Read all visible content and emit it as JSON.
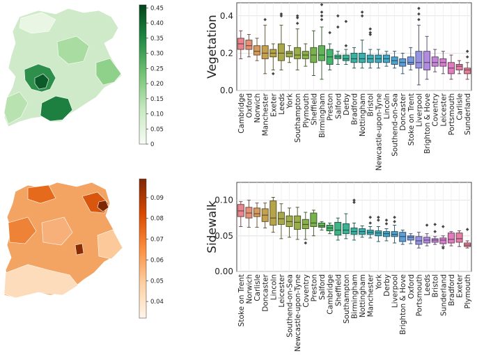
{
  "colorbars": [
    {
      "name": "vegetation-colorbar",
      "ticks": [
        "0",
        "0.05",
        "0.10",
        "0.15",
        "0.20",
        "0.25",
        "0.30",
        "0.35",
        "0.40",
        "0.45"
      ],
      "range": [
        0,
        0.46
      ],
      "color_low": "#f7fcf5",
      "color_high": "#00441b"
    },
    {
      "name": "sidewalk-colorbar",
      "ticks": [
        "0.04",
        "0.05",
        "0.06",
        "0.07",
        "0.08",
        "0.09"
      ],
      "range": [
        0.032,
        0.099
      ],
      "color_low": "#fff5eb",
      "color_high": "#7f2704"
    }
  ],
  "chart_data": [
    {
      "type": "boxplot",
      "title": "",
      "ylabel": "Vegetation",
      "ylim": [
        0,
        0.47
      ],
      "yticks": [
        "0.0",
        "0.2",
        "0.4"
      ],
      "yticks_values": [
        0.0,
        0.2,
        0.4
      ],
      "grid": true,
      "categories": [
        "Cambridge",
        "Oxford",
        "Norwich",
        "Manchester",
        "Exeter",
        "Leeds",
        "York",
        "Southampton",
        "Plymouth",
        "Sheffield",
        "Birmingham",
        "Preston",
        "Salford",
        "Derby",
        "Bradford",
        "Nottingham",
        "Bristol",
        "Newcastle-upon-Tyne",
        "Lincoln",
        "Southend-on-Sea",
        "Doncaster",
        "Stoke on Trent",
        "Liverpool",
        "Brighton & Hove",
        "Coventry",
        "Leicester",
        "Portsmouth",
        "Carlisle",
        "Sunderland"
      ],
      "colors": [
        "#e8858d",
        "#e39077",
        "#d49a5e",
        "#c4a04f",
        "#b5a44a",
        "#a8a84a",
        "#a0ac4a",
        "#99ad4a",
        "#8aaf4a",
        "#78b14e",
        "#62b45a",
        "#45b56e",
        "#3eb586",
        "#3ab394",
        "#3ab1a0",
        "#3aafab",
        "#3cadb5",
        "#40aabd",
        "#45a7c5",
        "#4ea3cf",
        "#5e9ed7",
        "#7899e0",
        "#9693e3",
        "#b08be0",
        "#c584d9",
        "#d57ecf",
        "#e07cbd",
        "#e47ea9",
        "#e68097"
      ],
      "boxes": [
        {
          "min": 0.17,
          "q1": 0.22,
          "median": 0.25,
          "q3": 0.28,
          "max": 0.32,
          "outliers": []
        },
        {
          "min": 0.18,
          "q1": 0.22,
          "median": 0.24,
          "q3": 0.27,
          "max": 0.3,
          "outliers": []
        },
        {
          "min": 0.16,
          "q1": 0.19,
          "median": 0.21,
          "q3": 0.24,
          "max": 0.28,
          "outliers": []
        },
        {
          "min": 0.09,
          "q1": 0.17,
          "median": 0.2,
          "q3": 0.24,
          "max": 0.35,
          "outliers": [
            0.38
          ]
        },
        {
          "min": 0.11,
          "q1": 0.18,
          "median": 0.2,
          "q3": 0.22,
          "max": 0.25,
          "outliers": [
            0.09
          ]
        },
        {
          "min": 0.11,
          "q1": 0.16,
          "median": 0.2,
          "q3": 0.25,
          "max": 0.35,
          "outliers": [
            0.4,
            0.41
          ]
        },
        {
          "min": 0.15,
          "q1": 0.18,
          "median": 0.2,
          "q3": 0.21,
          "max": 0.24,
          "outliers": []
        },
        {
          "min": 0.11,
          "q1": 0.17,
          "median": 0.19,
          "q3": 0.23,
          "max": 0.33,
          "outliers": [
            0.36,
            0.39,
            0.4
          ]
        },
        {
          "min": 0.13,
          "q1": 0.17,
          "median": 0.19,
          "q3": 0.21,
          "max": 0.25,
          "outliers": []
        },
        {
          "min": 0.08,
          "q1": 0.15,
          "median": 0.19,
          "q3": 0.23,
          "max": 0.32,
          "outliers": []
        },
        {
          "min": 0.06,
          "q1": 0.16,
          "median": 0.19,
          "q3": 0.24,
          "max": 0.34,
          "outliers": [
            0.38,
            0.4,
            0.42,
            0.46
          ]
        },
        {
          "min": 0.11,
          "q1": 0.14,
          "median": 0.18,
          "q3": 0.22,
          "max": 0.25,
          "outliers": [
            0.31
          ]
        },
        {
          "min": 0.14,
          "q1": 0.17,
          "median": 0.18,
          "q3": 0.19,
          "max": 0.21,
          "outliers": [
            0.34,
            0.4
          ]
        },
        {
          "min": 0.14,
          "q1": 0.16,
          "median": 0.17,
          "q3": 0.19,
          "max": 0.22,
          "outliers": [
            0.24,
            0.37
          ]
        },
        {
          "min": 0.12,
          "q1": 0.15,
          "median": 0.17,
          "q3": 0.2,
          "max": 0.23,
          "outliers": []
        },
        {
          "min": 0.12,
          "q1": 0.15,
          "median": 0.17,
          "q3": 0.2,
          "max": 0.27,
          "outliers": [
            0.4,
            0.42
          ]
        },
        {
          "min": 0.12,
          "q1": 0.15,
          "median": 0.17,
          "q3": 0.19,
          "max": 0.22,
          "outliers": [
            0.3,
            0.31,
            0.33
          ]
        },
        {
          "min": 0.12,
          "q1": 0.15,
          "median": 0.17,
          "q3": 0.19,
          "max": 0.22,
          "outliers": []
        },
        {
          "min": 0.13,
          "q1": 0.15,
          "median": 0.17,
          "q3": 0.19,
          "max": 0.21,
          "outliers": []
        },
        {
          "min": 0.12,
          "q1": 0.14,
          "median": 0.16,
          "q3": 0.18,
          "max": 0.21,
          "outliers": []
        },
        {
          "min": 0.09,
          "q1": 0.13,
          "median": 0.15,
          "q3": 0.17,
          "max": 0.2,
          "outliers": []
        },
        {
          "min": 0.11,
          "q1": 0.14,
          "median": 0.15,
          "q3": 0.18,
          "max": 0.23,
          "outliers": []
        },
        {
          "min": 0.03,
          "q1": 0.12,
          "median": 0.15,
          "q3": 0.21,
          "max": 0.35,
          "outliers": [
            0.38,
            0.41,
            0.44
          ]
        },
        {
          "min": 0.06,
          "q1": 0.11,
          "median": 0.15,
          "q3": 0.21,
          "max": 0.29,
          "outliers": []
        },
        {
          "min": 0.1,
          "q1": 0.13,
          "median": 0.15,
          "q3": 0.18,
          "max": 0.22,
          "outliers": []
        },
        {
          "min": 0.09,
          "q1": 0.13,
          "median": 0.15,
          "q3": 0.17,
          "max": 0.21,
          "outliers": []
        },
        {
          "min": 0.06,
          "q1": 0.09,
          "median": 0.12,
          "q3": 0.15,
          "max": 0.19,
          "outliers": []
        },
        {
          "min": 0.09,
          "q1": 0.11,
          "median": 0.13,
          "q3": 0.14,
          "max": 0.16,
          "outliers": []
        },
        {
          "min": 0.06,
          "q1": 0.09,
          "median": 0.11,
          "q3": 0.12,
          "max": 0.15,
          "outliers": [
            0.18,
            0.21
          ]
        }
      ]
    },
    {
      "type": "boxplot",
      "title": "",
      "ylabel": "Sidewalk",
      "ylim": [
        0,
        0.125
      ],
      "yticks": [
        "0.00",
        "0.05",
        "0.10"
      ],
      "yticks_values": [
        0.0,
        0.05,
        0.1
      ],
      "grid": true,
      "categories": [
        "Stoke on Trent",
        "Norwich",
        "Carlisle",
        "Doncaster",
        "Lincoln",
        "Leicester",
        "Southend-on-Sea",
        "Newcastle-upon-Tyne",
        "Coventry",
        "Preston",
        "Salford",
        "Cambridge",
        "Sheffield",
        "Southampton",
        "Birmingham",
        "Nottingham",
        "Manchester",
        "York",
        "Derby",
        "Liverpool",
        "Brighton & Hove",
        "Oxford",
        "Portsmouth",
        "Leeds",
        "Bristol",
        "Sunderland",
        "Bradford",
        "Exeter",
        "Plymouth"
      ],
      "colors": [
        "#e8858d",
        "#e39077",
        "#d49a5e",
        "#c4a04f",
        "#b5a44a",
        "#a8a84a",
        "#a0ac4a",
        "#99ad4a",
        "#8aaf4a",
        "#78b14e",
        "#62b45a",
        "#45b56e",
        "#3eb586",
        "#3ab394",
        "#3ab1a0",
        "#3aafab",
        "#3cadb5",
        "#40aabd",
        "#45a7c5",
        "#4ea3cf",
        "#5e9ed7",
        "#7899e0",
        "#9693e3",
        "#b08be0",
        "#c584d9",
        "#d57ecf",
        "#e07cbd",
        "#e47ea9",
        "#e68097"
      ],
      "boxes": [
        {
          "min": 0.063,
          "q1": 0.077,
          "median": 0.085,
          "q3": 0.094,
          "max": 0.098,
          "outliers": []
        },
        {
          "min": 0.062,
          "q1": 0.075,
          "median": 0.082,
          "q3": 0.09,
          "max": 0.1,
          "outliers": []
        },
        {
          "min": 0.062,
          "q1": 0.077,
          "median": 0.081,
          "q3": 0.089,
          "max": 0.096,
          "outliers": []
        },
        {
          "min": 0.061,
          "q1": 0.07,
          "median": 0.079,
          "q3": 0.088,
          "max": 0.096,
          "outliers": []
        },
        {
          "min": 0.055,
          "q1": 0.065,
          "median": 0.075,
          "q3": 0.099,
          "max": 0.104,
          "outliers": []
        },
        {
          "min": 0.046,
          "q1": 0.066,
          "median": 0.074,
          "q3": 0.083,
          "max": 0.095,
          "outliers": []
        },
        {
          "min": 0.048,
          "q1": 0.063,
          "median": 0.07,
          "q3": 0.078,
          "max": 0.089,
          "outliers": []
        },
        {
          "min": 0.045,
          "q1": 0.059,
          "median": 0.069,
          "q3": 0.078,
          "max": 0.09,
          "outliers": []
        },
        {
          "min": 0.045,
          "q1": 0.06,
          "median": 0.066,
          "q3": 0.073,
          "max": 0.083,
          "outliers": [
            0.04
          ]
        },
        {
          "min": 0.05,
          "q1": 0.063,
          "median": 0.068,
          "q3": 0.082,
          "max": 0.086,
          "outliers": []
        },
        {
          "min": 0.058,
          "q1": 0.062,
          "median": 0.064,
          "q3": 0.068,
          "max": 0.07,
          "outliers": []
        },
        {
          "min": 0.053,
          "q1": 0.057,
          "median": 0.061,
          "q3": 0.065,
          "max": 0.068,
          "outliers": []
        },
        {
          "min": 0.044,
          "q1": 0.051,
          "median": 0.058,
          "q3": 0.069,
          "max": 0.075,
          "outliers": []
        },
        {
          "min": 0.046,
          "q1": 0.053,
          "median": 0.058,
          "q3": 0.067,
          "max": 0.081,
          "outliers": []
        },
        {
          "min": 0.044,
          "q1": 0.052,
          "median": 0.056,
          "q3": 0.061,
          "max": 0.068,
          "outliers": [
            0.097,
            0.1
          ]
        },
        {
          "min": 0.048,
          "q1": 0.052,
          "median": 0.056,
          "q3": 0.06,
          "max": 0.064,
          "outliers": []
        },
        {
          "min": 0.047,
          "q1": 0.052,
          "median": 0.055,
          "q3": 0.058,
          "max": 0.063,
          "outliers": [
            0.068,
            0.076
          ]
        },
        {
          "min": 0.042,
          "q1": 0.05,
          "median": 0.054,
          "q3": 0.057,
          "max": 0.063,
          "outliers": [
            0.072,
            0.076
          ]
        },
        {
          "min": 0.043,
          "q1": 0.049,
          "median": 0.053,
          "q3": 0.056,
          "max": 0.06,
          "outliers": [
            0.067,
            0.072
          ]
        },
        {
          "min": 0.04,
          "q1": 0.049,
          "median": 0.052,
          "q3": 0.056,
          "max": 0.065,
          "outliers": [
            0.07,
            0.076
          ]
        },
        {
          "min": 0.038,
          "q1": 0.042,
          "median": 0.049,
          "q3": 0.055,
          "max": 0.058,
          "outliers": []
        },
        {
          "min": 0.039,
          "q1": 0.044,
          "median": 0.048,
          "q3": 0.05,
          "max": 0.053,
          "outliers": []
        },
        {
          "min": 0.033,
          "q1": 0.038,
          "median": 0.043,
          "q3": 0.049,
          "max": 0.055,
          "outliers": []
        },
        {
          "min": 0.036,
          "q1": 0.04,
          "median": 0.044,
          "q3": 0.048,
          "max": 0.053,
          "outliers": [
            0.065
          ]
        },
        {
          "min": 0.038,
          "q1": 0.041,
          "median": 0.044,
          "q3": 0.046,
          "max": 0.049,
          "outliers": [
            0.056,
            0.066
          ]
        },
        {
          "min": 0.035,
          "q1": 0.039,
          "median": 0.044,
          "q3": 0.047,
          "max": 0.05,
          "outliers": [
            0.033,
            0.063
          ]
        },
        {
          "min": 0.036,
          "q1": 0.04,
          "median": 0.045,
          "q3": 0.054,
          "max": 0.056,
          "outliers": []
        },
        {
          "min": 0.035,
          "q1": 0.041,
          "median": 0.046,
          "q3": 0.054,
          "max": 0.057,
          "outliers": []
        },
        {
          "min": 0.033,
          "q1": 0.035,
          "median": 0.037,
          "q3": 0.04,
          "max": 0.043,
          "outliers": [
            0.059
          ]
        }
      ]
    }
  ]
}
